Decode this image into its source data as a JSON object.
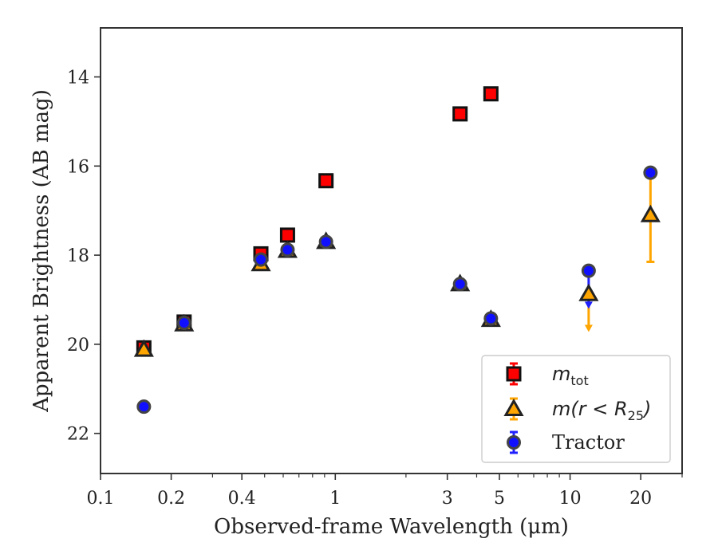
{
  "chart_data": {
    "type": "scatter",
    "xlabel": "Observed-frame Wavelength (μm)",
    "ylabel": "Apparent Brightness (AB mag)",
    "xscale": "log",
    "xlim": [
      0.1,
      30
    ],
    "ylim": [
      22.9,
      12.9
    ],
    "y_inverted": true,
    "x_ticks": [
      0.1,
      0.2,
      0.4,
      1,
      3,
      5,
      10,
      20
    ],
    "x_tick_labels": [
      "0.1",
      "0.2",
      "0.4",
      "1",
      "3",
      "5",
      "10",
      "20"
    ],
    "y_ticks": [
      14,
      16,
      18,
      20,
      22
    ],
    "y_tick_labels": [
      "14",
      "16",
      "18",
      "20",
      "22"
    ],
    "grid": false,
    "legend_position": "lower-right",
    "series": [
      {
        "name": "m_tot",
        "legend_main": "m",
        "legend_sub": "tot",
        "marker": "square",
        "color": "#ff0000",
        "edge": "#111111",
        "errcolor": "#ff0000",
        "points": [
          {
            "x": 0.153,
            "y": 20.08
          },
          {
            "x": 0.227,
            "y": 19.5
          },
          {
            "x": 0.482,
            "y": 17.97
          },
          {
            "x": 0.626,
            "y": 17.55
          },
          {
            "x": 0.913,
            "y": 16.33
          },
          {
            "x": 3.4,
            "y": 14.83
          },
          {
            "x": 4.6,
            "y": 14.38
          }
        ]
      },
      {
        "name": "m(r<R25)",
        "legend_main": "m(r < R",
        "legend_sub": "25",
        "legend_tail": ")",
        "marker": "triangle",
        "color": "#ffa500",
        "edge": "#222222",
        "errcolor": "#ffa500",
        "points": [
          {
            "x": 0.153,
            "y": 20.12
          },
          {
            "x": 0.227,
            "y": 19.55
          },
          {
            "x": 0.482,
            "y": 18.2
          },
          {
            "x": 0.626,
            "y": 17.9
          },
          {
            "x": 0.913,
            "y": 17.7
          },
          {
            "x": 3.4,
            "y": 18.65
          },
          {
            "x": 4.6,
            "y": 19.45
          },
          {
            "x": 12,
            "y": 18.87,
            "yerr_low": 0.0,
            "yerr_high": 0.8,
            "upper_limit": true
          },
          {
            "x": 22,
            "y": 17.1,
            "yerr_low": 0.95,
            "yerr_high": 1.05
          }
        ]
      },
      {
        "name": "Tractor",
        "legend_main": "Tractor",
        "marker": "circle",
        "color": "#1010ff",
        "edge": "#444444",
        "errcolor": "#2020ff",
        "points": [
          {
            "x": 0.153,
            "y": 21.4
          },
          {
            "x": 0.227,
            "y": 19.52
          },
          {
            "x": 0.482,
            "y": 18.1
          },
          {
            "x": 0.626,
            "y": 17.88
          },
          {
            "x": 0.913,
            "y": 17.7
          },
          {
            "x": 3.4,
            "y": 18.65
          },
          {
            "x": 4.6,
            "y": 19.42
          },
          {
            "x": 12,
            "y": 18.35,
            "yerr_low": 0.0,
            "yerr_high": 0.8,
            "upper_limit": true
          },
          {
            "x": 22,
            "y": 16.15
          }
        ]
      }
    ]
  }
}
